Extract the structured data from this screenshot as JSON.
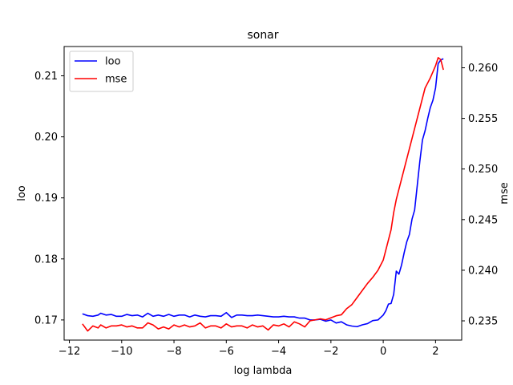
{
  "chart_data": {
    "type": "line",
    "title": "sonar",
    "xlabel": "log lambda",
    "ylabel": "loo",
    "y2label": "mse",
    "xlim": [
      -12.2,
      3.0
    ],
    "ylim": [
      0.1667,
      0.2148
    ],
    "y2lim": [
      0.2331,
      0.2621
    ],
    "xticks": [
      "−12",
      "−10",
      "−8",
      "−6",
      "−4",
      "−2",
      "0",
      "2"
    ],
    "yticks": [
      "0.17",
      "0.18",
      "0.19",
      "0.20",
      "0.21"
    ],
    "y2ticks": [
      "0.235",
      "0.240",
      "0.245",
      "0.250",
      "0.255",
      "0.260"
    ],
    "legend_position": "top-left",
    "grid": false,
    "series": [
      {
        "name": "loo",
        "color": "#0000ff",
        "axis": "left",
        "points": [
          [
            -11.5,
            0.171
          ],
          [
            -11.3,
            0.1707
          ],
          [
            -11.1,
            0.1706
          ],
          [
            -10.9,
            0.1708
          ],
          [
            -10.8,
            0.1711
          ],
          [
            -10.6,
            0.1708
          ],
          [
            -10.4,
            0.1709
          ],
          [
            -10.2,
            0.1706
          ],
          [
            -10.0,
            0.1706
          ],
          [
            -9.8,
            0.1709
          ],
          [
            -9.6,
            0.1707
          ],
          [
            -9.4,
            0.1708
          ],
          [
            -9.2,
            0.1705
          ],
          [
            -9.0,
            0.1711
          ],
          [
            -8.8,
            0.1706
          ],
          [
            -8.6,
            0.1708
          ],
          [
            -8.4,
            0.1706
          ],
          [
            -8.2,
            0.1709
          ],
          [
            -8.0,
            0.1706
          ],
          [
            -7.8,
            0.1708
          ],
          [
            -7.6,
            0.1708
          ],
          [
            -7.4,
            0.1705
          ],
          [
            -7.2,
            0.1708
          ],
          [
            -7.0,
            0.1706
          ],
          [
            -6.8,
            0.1705
          ],
          [
            -6.6,
            0.1707
          ],
          [
            -6.4,
            0.1707
          ],
          [
            -6.2,
            0.1706
          ],
          [
            -6.0,
            0.1712
          ],
          [
            -5.8,
            0.1704
          ],
          [
            -5.6,
            0.1708
          ],
          [
            -5.4,
            0.1708
          ],
          [
            -5.2,
            0.1707
          ],
          [
            -5.0,
            0.1707
          ],
          [
            -4.8,
            0.1708
          ],
          [
            -4.6,
            0.1707
          ],
          [
            -4.4,
            0.1706
          ],
          [
            -4.2,
            0.1705
          ],
          [
            -4.0,
            0.1705
          ],
          [
            -3.8,
            0.1706
          ],
          [
            -3.6,
            0.1705
          ],
          [
            -3.4,
            0.1705
          ],
          [
            -3.2,
            0.1703
          ],
          [
            -3.0,
            0.1703
          ],
          [
            -2.8,
            0.17
          ],
          [
            -2.6,
            0.17
          ],
          [
            -2.4,
            0.1701
          ],
          [
            -2.2,
            0.1698
          ],
          [
            -2.0,
            0.17
          ],
          [
            -1.8,
            0.1695
          ],
          [
            -1.6,
            0.1697
          ],
          [
            -1.4,
            0.1692
          ],
          [
            -1.2,
            0.169
          ],
          [
            -1.0,
            0.1689
          ],
          [
            -0.8,
            0.1692
          ],
          [
            -0.6,
            0.1694
          ],
          [
            -0.4,
            0.1699
          ],
          [
            -0.2,
            0.17
          ],
          [
            0.0,
            0.1708
          ],
          [
            0.1,
            0.1715
          ],
          [
            0.2,
            0.1726
          ],
          [
            0.3,
            0.1727
          ],
          [
            0.4,
            0.1742
          ],
          [
            0.5,
            0.178
          ],
          [
            0.6,
            0.1775
          ],
          [
            0.7,
            0.179
          ],
          [
            0.8,
            0.181
          ],
          [
            0.9,
            0.1828
          ],
          [
            1.0,
            0.184
          ],
          [
            1.1,
            0.1865
          ],
          [
            1.2,
            0.188
          ],
          [
            1.3,
            0.192
          ],
          [
            1.4,
            0.196
          ],
          [
            1.5,
            0.1995
          ],
          [
            1.6,
            0.201
          ],
          [
            1.7,
            0.203
          ],
          [
            1.8,
            0.2048
          ],
          [
            1.9,
            0.206
          ],
          [
            2.0,
            0.208
          ],
          [
            2.1,
            0.212
          ],
          [
            2.2,
            0.2126
          ],
          [
            2.3,
            0.2128
          ]
        ]
      },
      {
        "name": "mse",
        "color": "#ff0000",
        "axis": "right",
        "points": [
          [
            -11.5,
            0.2347
          ],
          [
            -11.3,
            0.234
          ],
          [
            -11.1,
            0.2345
          ],
          [
            -10.9,
            0.2343
          ],
          [
            -10.8,
            0.2346
          ],
          [
            -10.6,
            0.2343
          ],
          [
            -10.4,
            0.2345
          ],
          [
            -10.2,
            0.2345
          ],
          [
            -10.0,
            0.2346
          ],
          [
            -9.8,
            0.2344
          ],
          [
            -9.6,
            0.2345
          ],
          [
            -9.4,
            0.2343
          ],
          [
            -9.2,
            0.2343
          ],
          [
            -9.0,
            0.2348
          ],
          [
            -8.8,
            0.2346
          ],
          [
            -8.6,
            0.2342
          ],
          [
            -8.4,
            0.2344
          ],
          [
            -8.2,
            0.2342
          ],
          [
            -8.0,
            0.2346
          ],
          [
            -7.8,
            0.2344
          ],
          [
            -7.6,
            0.2346
          ],
          [
            -7.4,
            0.2344
          ],
          [
            -7.2,
            0.2345
          ],
          [
            -7.0,
            0.2348
          ],
          [
            -6.8,
            0.2343
          ],
          [
            -6.6,
            0.2345
          ],
          [
            -6.4,
            0.2345
          ],
          [
            -6.2,
            0.2343
          ],
          [
            -6.0,
            0.2347
          ],
          [
            -5.8,
            0.2344
          ],
          [
            -5.6,
            0.2345
          ],
          [
            -5.4,
            0.2345
          ],
          [
            -5.2,
            0.2343
          ],
          [
            -5.0,
            0.2346
          ],
          [
            -4.8,
            0.2344
          ],
          [
            -4.6,
            0.2345
          ],
          [
            -4.4,
            0.2341
          ],
          [
            -4.2,
            0.2346
          ],
          [
            -4.0,
            0.2345
          ],
          [
            -3.8,
            0.2347
          ],
          [
            -3.6,
            0.2344
          ],
          [
            -3.4,
            0.2349
          ],
          [
            -3.2,
            0.2347
          ],
          [
            -3.0,
            0.2344
          ],
          [
            -2.8,
            0.235
          ],
          [
            -2.6,
            0.2351
          ],
          [
            -2.4,
            0.2352
          ],
          [
            -2.2,
            0.2351
          ],
          [
            -2.0,
            0.2353
          ],
          [
            -1.8,
            0.2355
          ],
          [
            -1.6,
            0.2356
          ],
          [
            -1.4,
            0.2362
          ],
          [
            -1.2,
            0.2366
          ],
          [
            -1.0,
            0.2373
          ],
          [
            -0.8,
            0.238
          ],
          [
            -0.6,
            0.2387
          ],
          [
            -0.4,
            0.2393
          ],
          [
            -0.2,
            0.24
          ],
          [
            0.0,
            0.241
          ],
          [
            0.1,
            0.242
          ],
          [
            0.2,
            0.243
          ],
          [
            0.3,
            0.244
          ],
          [
            0.4,
            0.2457
          ],
          [
            0.5,
            0.247
          ],
          [
            0.6,
            0.248
          ],
          [
            0.7,
            0.249
          ],
          [
            0.8,
            0.25
          ],
          [
            0.9,
            0.251
          ],
          [
            1.0,
            0.252
          ],
          [
            1.1,
            0.253
          ],
          [
            1.2,
            0.254
          ],
          [
            1.3,
            0.255
          ],
          [
            1.4,
            0.256
          ],
          [
            1.5,
            0.257
          ],
          [
            1.6,
            0.258
          ],
          [
            1.7,
            0.2585
          ],
          [
            1.8,
            0.259
          ],
          [
            1.9,
            0.2596
          ],
          [
            2.0,
            0.2602
          ],
          [
            2.1,
            0.261
          ],
          [
            2.2,
            0.2608
          ],
          [
            2.3,
            0.2598
          ]
        ]
      }
    ]
  }
}
